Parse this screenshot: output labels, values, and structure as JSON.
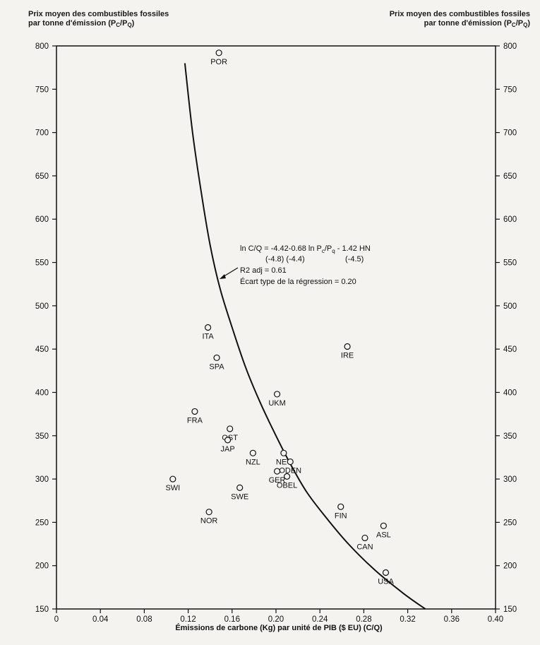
{
  "chart_data": {
    "type": "scatter",
    "ylabel_left": "Prix moyen des combustibles fossiles",
    "ylabel_left_line2": "par tonne d'émission (P",
    "ylabel_right": "Prix moyen des combustibles fossiles",
    "ylabel_right_line2": "par tonne d'émission (P",
    "ylabel_sub_c": "C",
    "ylabel_slash": "/P",
    "ylabel_sub_q": "Q",
    "ylabel_close": ")",
    "xlabel": "Émissions de carbone (Kg) par unité de PIB ($ EU) (C/Q)",
    "xlim": [
      0,
      0.4
    ],
    "ylim": [
      150,
      800
    ],
    "x_ticks": [
      "0",
      "0.04",
      "0.08",
      "0.12",
      "0.16",
      "0.20",
      "0.24",
      "0.28",
      "0.32",
      "0.36",
      "0.40"
    ],
    "x_tick_values": [
      0,
      0.04,
      0.08,
      0.12,
      0.16,
      0.2,
      0.24,
      0.28,
      0.32,
      0.36,
      0.4
    ],
    "y_ticks": [
      150,
      200,
      250,
      300,
      350,
      400,
      450,
      500,
      550,
      600,
      650,
      700,
      750,
      800
    ],
    "points": [
      {
        "label": "POR",
        "x": 0.148,
        "y": 792
      },
      {
        "label": "ITA",
        "x": 0.138,
        "y": 475
      },
      {
        "label": "SPA",
        "x": 0.146,
        "y": 440
      },
      {
        "label": "FRA",
        "x": 0.126,
        "y": 378
      },
      {
        "label": "OST",
        "x": 0.158,
        "y": 358
      },
      {
        "label": "JAP",
        "x": 0.156,
        "y": 345
      },
      {
        "label": "NZL",
        "x": 0.179,
        "y": 330
      },
      {
        "label": "SWI",
        "x": 0.106,
        "y": 300
      },
      {
        "label": "SWE",
        "x": 0.167,
        "y": 290
      },
      {
        "label": "NOR",
        "x": 0.139,
        "y": 262
      },
      {
        "label": "UKM",
        "x": 0.201,
        "y": 398
      },
      {
        "label": "NET",
        "x": 0.207,
        "y": 330
      },
      {
        "label": "ODEN",
        "x": 0.213,
        "y": 320
      },
      {
        "label": "OBEL",
        "x": 0.21,
        "y": 303
      },
      {
        "label": "GER",
        "x": 0.201,
        "y": 309
      },
      {
        "label": "IRE",
        "x": 0.265,
        "y": 453
      },
      {
        "label": "FIN",
        "x": 0.259,
        "y": 268
      },
      {
        "label": "ASL",
        "x": 0.298,
        "y": 246
      },
      {
        "label": "CAN",
        "x": 0.281,
        "y": 232
      },
      {
        "label": "USA",
        "x": 0.3,
        "y": 192
      }
    ],
    "curve": [
      [
        0.117,
        780
      ],
      [
        0.124,
        700
      ],
      [
        0.132,
        630
      ],
      [
        0.14,
        570
      ],
      [
        0.149,
        520
      ],
      [
        0.16,
        475
      ],
      [
        0.172,
        430
      ],
      [
        0.185,
        390
      ],
      [
        0.198,
        355
      ],
      [
        0.212,
        320
      ],
      [
        0.228,
        285
      ],
      [
        0.246,
        255
      ],
      [
        0.266,
        225
      ],
      [
        0.29,
        195
      ],
      [
        0.316,
        168
      ],
      [
        0.336,
        150
      ]
    ],
    "annotation": {
      "line1": "ln C/Q = -4.42-0.68 ln P",
      "line1_sub": "c",
      "line1_mid": "/P",
      "line1_sub2": "q",
      "line1_end": " - 1.42 HN",
      "line2": "(-4.8) (-4.4)",
      "line2_right": "(-4.5)",
      "line3": "R2 adj = 0.61",
      "line4": "Écart type de la régression = 0.20"
    }
  }
}
